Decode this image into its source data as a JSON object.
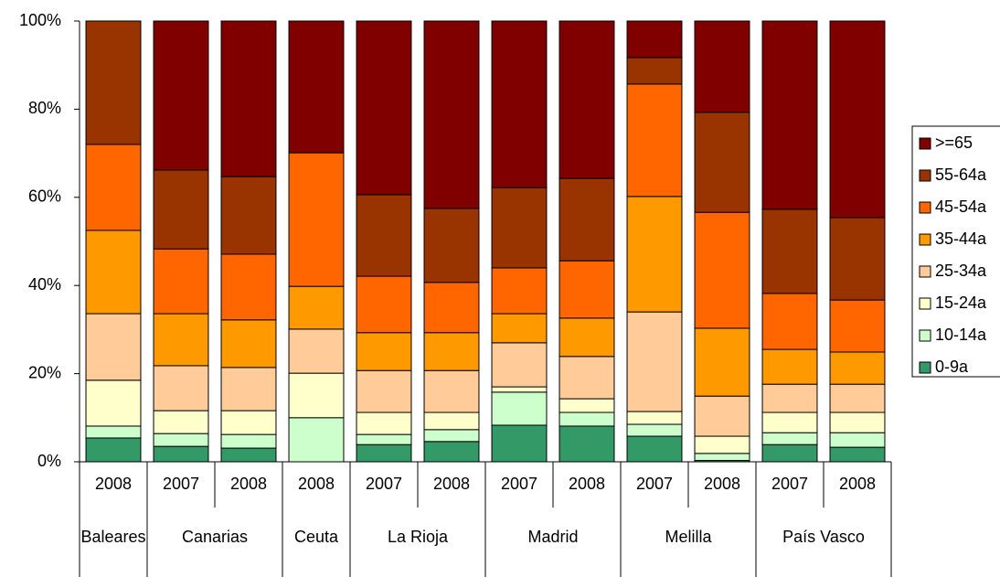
{
  "chart_data": {
    "type": "stacked_bar_percent",
    "categories": [
      "2008",
      "2007",
      "2008",
      "2008",
      "2007",
      "2008",
      "2007",
      "2008",
      "2007",
      "2008",
      "2007",
      "2008"
    ],
    "groups": [
      {
        "name": "Baleares",
        "span": 1
      },
      {
        "name": "Canarias",
        "span": 2
      },
      {
        "name": "Ceuta",
        "span": 1
      },
      {
        "name": "La Rioja",
        "span": 2
      },
      {
        "name": "Madrid",
        "span": 2
      },
      {
        "name": "Melilla",
        "span": 2
      },
      {
        "name": "País Vasco",
        "span": 2
      }
    ],
    "series": [
      {
        "name": "0-9a",
        "color": "#339966",
        "values": [
          5.4,
          3.5,
          3.1,
          0,
          3.9,
          4.6,
          8.3,
          8.1,
          5.8,
          0.3,
          3.9,
          3.3
        ]
      },
      {
        "name": "10-14a",
        "color": "#ccffcc",
        "values": [
          2.7,
          2.9,
          3.1,
          10,
          2.3,
          2.7,
          7.5,
          3.1,
          2.7,
          1.6,
          2.7,
          3.3
        ]
      },
      {
        "name": "15-24a",
        "color": "#ffffcc",
        "values": [
          10.4,
          5.2,
          5.4,
          10.1,
          5.0,
          3.9,
          1.2,
          3.1,
          2.9,
          3.9,
          4.6,
          4.6
        ]
      },
      {
        "name": "25-34a",
        "color": "#ffcc99",
        "values": [
          15.1,
          10.2,
          9.8,
          10,
          9.5,
          9.5,
          10.0,
          9.6,
          22.6,
          9.1,
          6.4,
          6.4
        ]
      },
      {
        "name": "35-44a",
        "color": "#ff9900",
        "values": [
          18.9,
          11.8,
          10.8,
          9.7,
          8.6,
          8.6,
          6.6,
          8.7,
          26.2,
          15.4,
          7.9,
          7.3
        ]
      },
      {
        "name": "45-54a",
        "color": "#ff6600",
        "values": [
          19.5,
          14.7,
          14.9,
          30.3,
          12.8,
          11.4,
          10.4,
          13.0,
          25.5,
          26.3,
          12.7,
          11.8
        ]
      },
      {
        "name": "55-64a",
        "color": "#993300",
        "values": [
          28.0,
          17.9,
          17.6,
          0,
          18.5,
          16.8,
          18.2,
          18.7,
          6.0,
          22.7,
          19.1,
          18.7
        ]
      },
      {
        "name": ">=65",
        "color": "#800000",
        "values": [
          0,
          33.8,
          35.3,
          29.9,
          39.4,
          42.5,
          37.8,
          35.7,
          8.3,
          20.7,
          42.7,
          44.6
        ]
      }
    ],
    "ylim": [
      0,
      100
    ],
    "yticks": [
      {
        "value": 0,
        "label": "0%"
      },
      {
        "value": 20,
        "label": "20%"
      },
      {
        "value": 40,
        "label": "40%"
      },
      {
        "value": 60,
        "label": "60%"
      },
      {
        "value": 80,
        "label": "80%"
      },
      {
        "value": 100,
        "label": "100%"
      }
    ],
    "legend": "right"
  }
}
